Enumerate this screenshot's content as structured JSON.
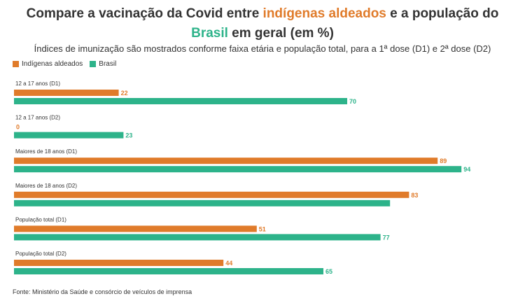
{
  "header": {
    "title_part1": "Compare a vacinação da Covid entre ",
    "title_highlight1": "indígenas aldeados",
    "title_part2": " e a população do",
    "title_highlight2": "Brasil",
    "title_part3": " em geral (em %)",
    "subtitle": "Índices de imunização são mostrados conforme faixa etária e população total, para a 1ª dose (D1) e 2ª dose (D2)"
  },
  "colors": {
    "indigenous": "#e07b2a",
    "brazil": "#2db38a"
  },
  "chart_data": {
    "type": "bar",
    "orientation": "horizontal",
    "categories": [
      "12 a 17 anos (D1)",
      "12 a 17 anos (D2)",
      "Maiores de 18 anos (D1)",
      "Maiores de 18 anos (D2)",
      "População total (D1)",
      "População total (D2)"
    ],
    "series": [
      {
        "name": "Indígenas aldeados",
        "values": [
          22,
          0,
          89,
          83,
          51,
          44
        ]
      },
      {
        "name": "Brasil",
        "values": [
          70,
          23,
          94,
          79,
          77,
          65
        ]
      }
    ],
    "value_labels": [
      [
        "22",
        "0",
        "89",
        "83",
        "51",
        "44"
      ],
      [
        "70",
        "23",
        "94",
        "",
        "77",
        "65"
      ]
    ],
    "xlim": [
      0,
      100
    ],
    "legend": "top-left",
    "grid": false
  },
  "footer": {
    "source": "Fonte: Ministério da Saúde e consórcio de veículos de imprensa"
  }
}
